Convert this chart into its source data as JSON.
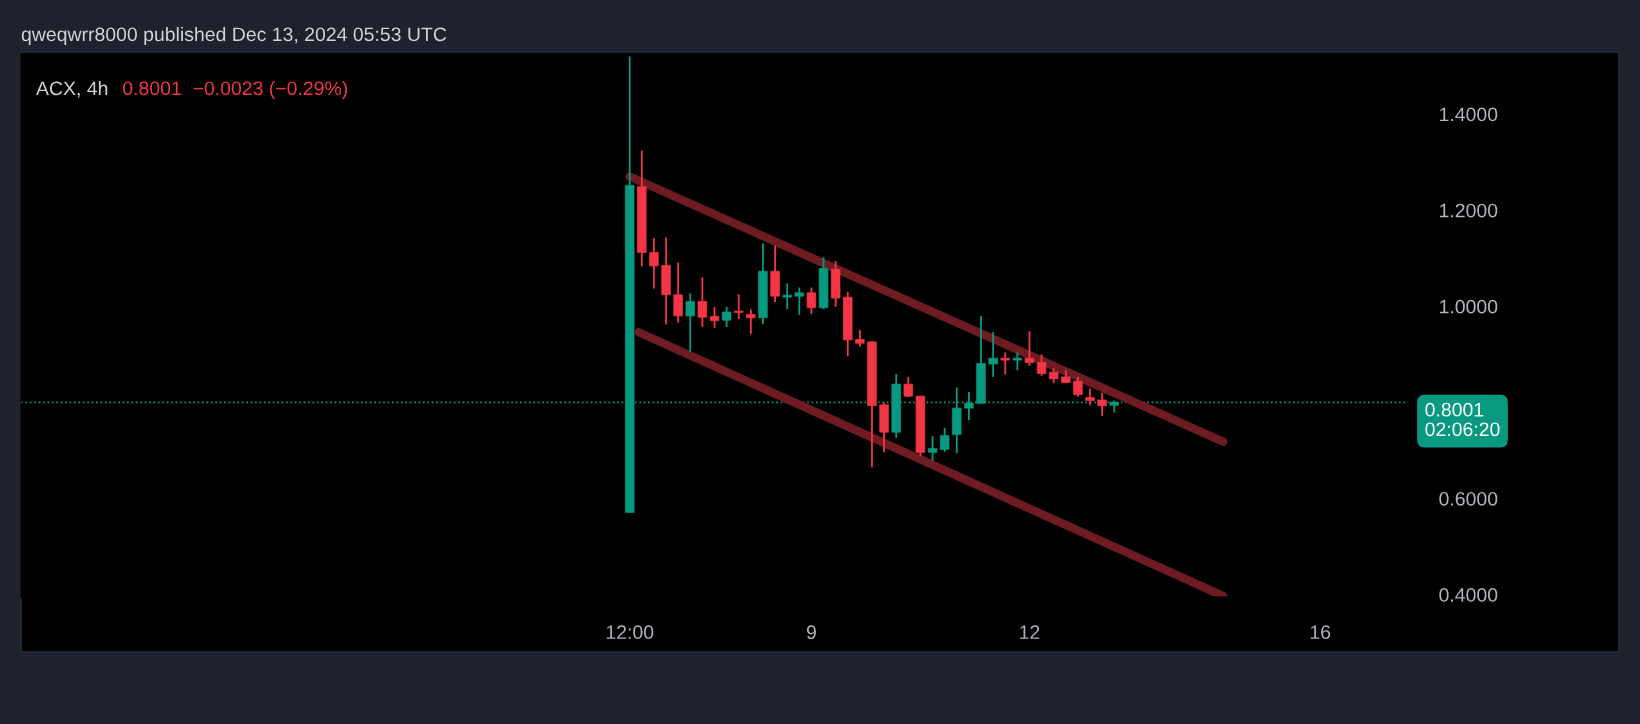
{
  "chart_data": {
    "type": "candlestick",
    "subtitle": "qweqwrr8000 published Dec 13, 2024 05:53 UTC",
    "title": "ACX, 4h",
    "annotations": [
      "0.8001  −0.0023 (−0.29%)"
    ],
    "x": [
      "2024-12-06T12:00",
      "2024-12-06T16:00",
      "2024-12-06T20:00",
      "2024-12-07T00:00",
      "2024-12-07T04:00",
      "2024-12-07T08:00",
      "2024-12-07T12:00",
      "2024-12-07T16:00",
      "2024-12-07T20:00",
      "2024-12-08T00:00",
      "2024-12-08T04:00",
      "2024-12-08T08:00",
      "2024-12-08T12:00",
      "2024-12-08T16:00",
      "2024-12-08T20:00",
      "2024-12-09T00:00",
      "2024-12-09T04:00",
      "2024-12-09T08:00",
      "2024-12-09T12:00",
      "2024-12-09T16:00",
      "2024-12-09T20:00",
      "2024-12-10T00:00",
      "2024-12-10T04:00",
      "2024-12-10T08:00",
      "2024-12-10T12:00",
      "2024-12-10T16:00",
      "2024-12-10T20:00",
      "2024-12-11T00:00",
      "2024-12-11T04:00",
      "2024-12-11T08:00",
      "2024-12-11T12:00",
      "2024-12-11T16:00",
      "2024-12-11T20:00",
      "2024-12-12T00:00",
      "2024-12-12T04:00",
      "2024-12-12T08:00",
      "2024-12-12T12:00",
      "2024-12-12T16:00",
      "2024-12-12T20:00",
      "2024-12-13T00:00",
      "2024-12-13T04:00"
    ],
    "ohlc": [
      [
        0.571,
        1.52,
        0.571,
        1.252
      ],
      [
        1.249,
        1.324,
        1.083,
        1.112
      ],
      [
        1.112,
        1.142,
        1.037,
        1.084
      ],
      [
        1.085,
        1.143,
        0.962,
        1.024
      ],
      [
        1.024,
        1.091,
        0.966,
        0.98
      ],
      [
        0.98,
        1.027,
        0.905,
        1.01
      ],
      [
        1.01,
        1.06,
        0.957,
        0.977
      ],
      [
        0.979,
        0.999,
        0.955,
        0.97
      ],
      [
        0.971,
        0.999,
        0.957,
        0.988
      ],
      [
        0.99,
        1.025,
        0.973,
        0.987
      ],
      [
        0.983,
        0.994,
        0.942,
        0.976
      ],
      [
        0.976,
        1.131,
        0.963,
        1.073
      ],
      [
        1.073,
        1.126,
        1.009,
        1.021
      ],
      [
        1.019,
        1.048,
        0.994,
        1.023
      ],
      [
        1.021,
        1.039,
        0.982,
        1.028
      ],
      [
        1.028,
        1.039,
        0.984,
        0.997
      ],
      [
        0.997,
        1.102,
        0.994,
        1.079
      ],
      [
        1.077,
        1.094,
        0.999,
        1.017
      ],
      [
        1.019,
        1.03,
        0.896,
        0.93
      ],
      [
        0.931,
        0.951,
        0.916,
        0.923
      ],
      [
        0.926,
        0.928,
        0.665,
        0.793
      ],
      [
        0.795,
        0.799,
        0.696,
        0.738
      ],
      [
        0.738,
        0.859,
        0.726,
        0.838
      ],
      [
        0.838,
        0.853,
        0.811,
        0.813
      ],
      [
        0.813,
        0.814,
        0.688,
        0.696
      ],
      [
        0.696,
        0.73,
        0.678,
        0.704
      ],
      [
        0.702,
        0.747,
        0.697,
        0.731
      ],
      [
        0.733,
        0.831,
        0.694,
        0.788
      ],
      [
        0.788,
        0.822,
        0.763,
        0.798
      ],
      [
        0.798,
        0.98,
        0.798,
        0.881
      ],
      [
        0.88,
        0.946,
        0.853,
        0.892
      ],
      [
        0.892,
        0.904,
        0.858,
        0.888
      ],
      [
        0.888,
        0.904,
        0.867,
        0.892
      ],
      [
        0.892,
        0.948,
        0.876,
        0.883
      ],
      [
        0.883,
        0.9,
        0.855,
        0.86
      ],
      [
        0.863,
        0.871,
        0.84,
        0.849
      ],
      [
        0.853,
        0.867,
        0.84,
        0.841
      ],
      [
        0.844,
        0.853,
        0.812,
        0.816
      ],
      [
        0.81,
        0.829,
        0.794,
        0.804
      ],
      [
        0.805,
        0.82,
        0.772,
        0.793
      ],
      [
        0.794,
        0.804,
        0.779,
        0.8
      ]
    ],
    "colors": [
      "#089981",
      "#f23645",
      "#f23645",
      "#f23645",
      "#f23645",
      "#089981",
      "#f23645",
      "#f23645",
      "#089981",
      "#f23645",
      "#f23645",
      "#089981",
      "#f23645",
      "#089981",
      "#089981",
      "#f23645",
      "#089981",
      "#f23645",
      "#f23645",
      "#f23645",
      "#f23645",
      "#f23645",
      "#089981",
      "#f23645",
      "#f23645",
      "#089981",
      "#089981",
      "#089981",
      "#089981",
      "#089981",
      "#089981",
      "#f23645",
      "#089981",
      "#f23645",
      "#f23645",
      "#f23645",
      "#f23645",
      "#f23645",
      "#f23645",
      "#f23645",
      "#089981"
    ],
    "series": [
      {
        "type": "line",
        "color": "#6e1c22",
        "x": [
          "2024-12-06T12:00",
          "2024-12-14T16:00"
        ],
        "values": [
          1.27,
          0.718
        ]
      },
      {
        "type": "line",
        "color": "#6e1c22",
        "x": [
          "2024-12-06T15:00",
          "2024-12-14T16:00"
        ],
        "values": [
          0.946,
          0.397
        ]
      }
    ],
    "ref_lines": [
      {
        "axis": "y",
        "value": 0.8001,
        "label": "0.8001\n02:06:20",
        "color": "#089981",
        "line_style": "dotted"
      }
    ],
    "xlim": [
      "2024-11-28T03:00",
      "2024-12-17T05:00"
    ],
    "xticks": [
      {
        "value": "2024-12-06T12:00",
        "label": "12:00"
      },
      {
        "value": "2024-12-09",
        "label": "9"
      },
      {
        "value": "2024-12-12",
        "label": "12"
      },
      {
        "value": "2024-12-16",
        "label": "16"
      }
    ],
    "ylim": [
      0.395,
      1.525
    ],
    "yticks": [
      {
        "value": 0.4,
        "label": "0.4000"
      },
      {
        "value": 0.6,
        "label": "0.6000"
      },
      {
        "value": 1.0,
        "label": "1.0000"
      },
      {
        "value": 1.2,
        "label": "1.2000"
      },
      {
        "value": 1.4,
        "label": "1.4000"
      }
    ],
    "grid": false
  }
}
